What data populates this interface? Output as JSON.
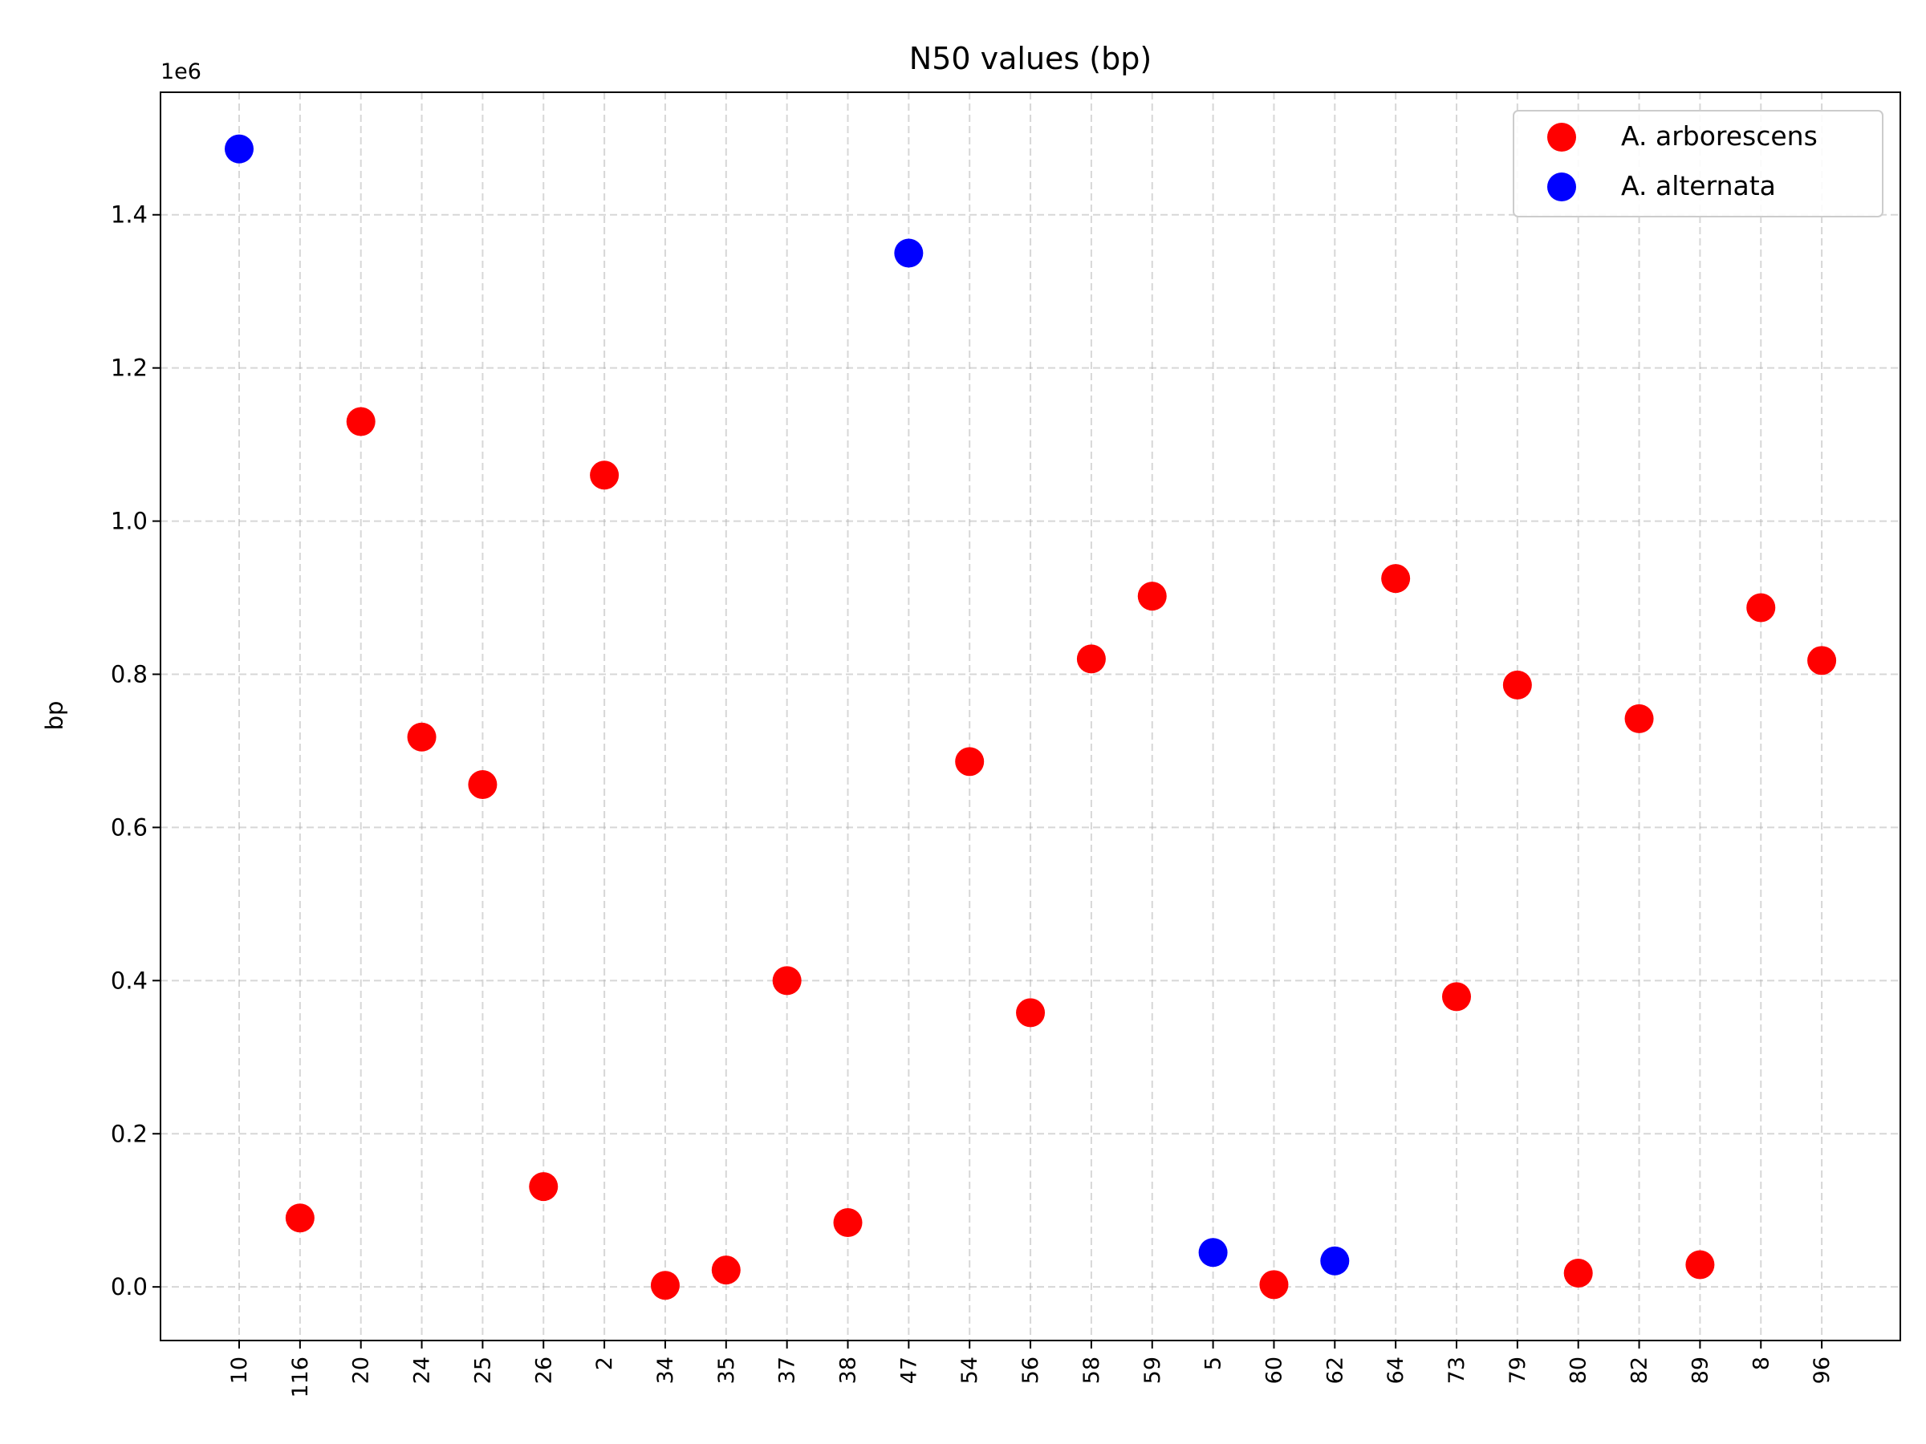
{
  "chart_data": {
    "type": "scatter",
    "title": "N50 values (bp)",
    "xlabel": "",
    "ylabel": "bp",
    "y_offset_label": "1e6",
    "categories": [
      "10",
      "116",
      "20",
      "24",
      "25",
      "26",
      "2",
      "34",
      "35",
      "37",
      "38",
      "47",
      "54",
      "56",
      "58",
      "59",
      "5",
      "60",
      "62",
      "64",
      "73",
      "79",
      "80",
      "82",
      "89",
      "8",
      "96"
    ],
    "ylim": [
      -0.07,
      1.56
    ],
    "yticks": [
      0.0,
      0.2,
      0.4,
      0.6,
      0.8,
      1.0,
      1.2,
      1.4
    ],
    "ytick_labels": [
      "0.0",
      "0.2",
      "0.4",
      "0.6",
      "0.8",
      "1.0",
      "1.2",
      "1.4"
    ],
    "grid": true,
    "legend_position": "top-right",
    "series": [
      {
        "name": "A. arborescens",
        "color": "#ff0000",
        "points": [
          [
            "116",
            0.09
          ],
          [
            "20",
            1.13
          ],
          [
            "24",
            0.718
          ],
          [
            "25",
            0.656
          ],
          [
            "26",
            0.131
          ],
          [
            "2",
            1.06
          ],
          [
            "34",
            0.002
          ],
          [
            "35",
            0.022
          ],
          [
            "37",
            0.4
          ],
          [
            "38",
            0.084
          ],
          [
            "54",
            0.686
          ],
          [
            "56",
            0.358
          ],
          [
            "58",
            0.82
          ],
          [
            "59",
            0.902
          ],
          [
            "60",
            0.003
          ],
          [
            "64",
            0.925
          ],
          [
            "73",
            0.379
          ],
          [
            "79",
            0.786
          ],
          [
            "80",
            0.018
          ],
          [
            "82",
            0.742
          ],
          [
            "89",
            0.029
          ],
          [
            "8",
            0.887
          ],
          [
            "96",
            0.818
          ]
        ]
      },
      {
        "name": "A. alternata",
        "color": "#0000ff",
        "points": [
          [
            "10",
            1.486
          ],
          [
            "47",
            1.35
          ],
          [
            "5",
            0.045
          ],
          [
            "62",
            0.034
          ]
        ]
      }
    ]
  }
}
